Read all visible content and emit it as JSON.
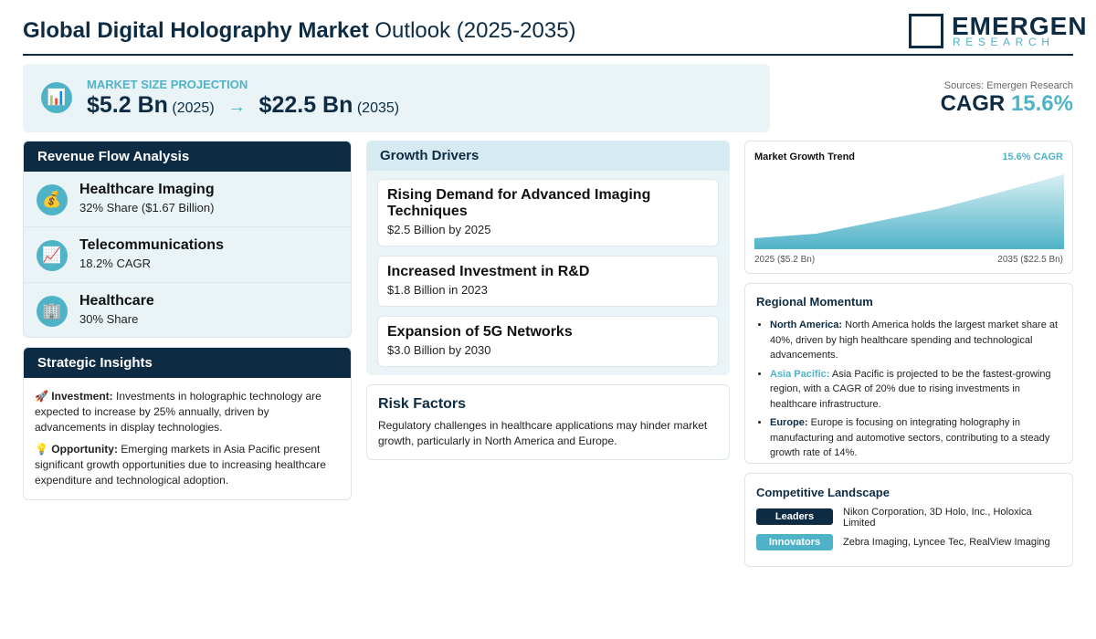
{
  "header": {
    "title_bold": "Global Digital Holography Market",
    "title_rest": "Outlook (2025-2035)",
    "logo_main": "EMERGEN",
    "logo_sub": "RESEARCH"
  },
  "projection": {
    "icon": "📊",
    "label": "MARKET SIZE PROJECTION",
    "start_value": "$5.2 Bn",
    "start_year": "(2025)",
    "arrow": "→",
    "end_value": "$22.5 Bn",
    "end_year": "(2035)"
  },
  "summary": {
    "sources": "Sources: Emergen Research",
    "cagr_label": "CAGR",
    "cagr_value": "15.6%"
  },
  "revenue": {
    "title": "Revenue Flow Analysis",
    "items": [
      {
        "icon": "💰",
        "name": "Healthcare Imaging",
        "detail": "32% Share ($1.67 Billion)"
      },
      {
        "icon": "📈",
        "name": "Telecommunications",
        "detail": "18.2% CAGR"
      },
      {
        "icon": "🏢",
        "name": "Healthcare",
        "detail": "30% Share"
      }
    ]
  },
  "insights": {
    "title": "Strategic Insights",
    "items": [
      {
        "icon": "🚀",
        "label": "Investment:",
        "text": "Investments in holographic technology are expected to increase by 25% annually, driven by advancements in display technologies."
      },
      {
        "icon": "💡",
        "label": "Opportunity:",
        "text": "Emerging markets in Asia Pacific present significant growth opportunities due to increasing healthcare expenditure and technological adoption."
      }
    ]
  },
  "drivers": {
    "title": "Growth Drivers",
    "items": [
      {
        "name": "Rising Demand for Advanced Imaging Techniques",
        "detail": "$2.5 Billion by 2025"
      },
      {
        "name": "Increased Investment in R&D",
        "detail": "$1.8 Billion in 2023"
      },
      {
        "name": "Expansion of 5G Networks",
        "detail": "$3.0 Billion by 2030"
      }
    ]
  },
  "risk": {
    "title": "Risk Factors",
    "text": "Regulatory challenges in healthcare applications may hinder market growth, particularly in North America and Europe."
  },
  "trend": {
    "title": "Market Growth Trend",
    "badge": "15.6% CAGR",
    "start_label": "2025 ($5.2 Bn)",
    "end_label": "2035 ($22.5 Bn)"
  },
  "regional": {
    "title": "Regional Momentum",
    "items": [
      {
        "region": "North America:",
        "text": "North America holds the largest market share at 40%, driven by high healthcare spending and technological advancements."
      },
      {
        "region": "Asia Pacific:",
        "text": "Asia Pacific is projected to be the fastest-growing region, with a CAGR of 20% due to rising investments in healthcare infrastructure."
      },
      {
        "region": "Europe:",
        "text": "Europe is focusing on integrating holography in manufacturing and automotive sectors, contributing to a steady growth rate of 14%."
      }
    ]
  },
  "competitive": {
    "title": "Competitive Landscape",
    "rows": [
      {
        "tag": "Leaders",
        "text": "Nikon Corporation, 3D Holo, Inc., Holoxica Limited"
      },
      {
        "tag": "Innovators",
        "text": "Zebra Imaging, Lyncee Tec, RealView Imaging"
      }
    ]
  }
}
